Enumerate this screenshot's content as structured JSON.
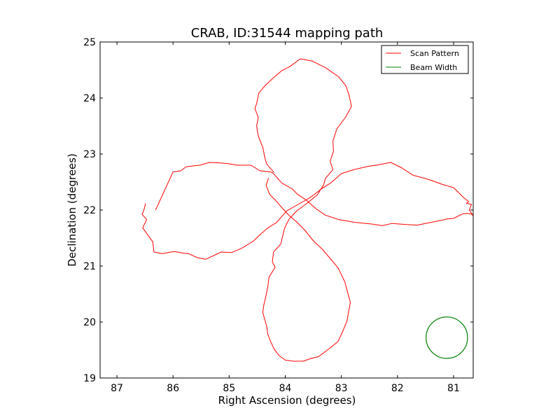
{
  "chart_data": {
    "type": "line",
    "title": "CRAB, ID:31544 mapping path",
    "xlabel": "Right Ascension (degrees)",
    "ylabel": "Declination (degrees)",
    "xlim": [
      87.3,
      80.65
    ],
    "ylim": [
      19,
      25
    ],
    "x_inverted": true,
    "xticks": [
      87,
      86,
      85,
      84,
      83,
      82,
      81
    ],
    "yticks": [
      19,
      20,
      21,
      22,
      23,
      24,
      25
    ],
    "xtick_labels": [
      "87",
      "86",
      "85",
      "84",
      "83",
      "82",
      "81"
    ],
    "ytick_labels": [
      "19",
      "20",
      "21",
      "22",
      "23",
      "24",
      "25"
    ],
    "grid": false,
    "legend_placement": "top-right",
    "series": [
      {
        "name": "Scan Pattern",
        "color": "#ff0000",
        "x": [
          86.31,
          86.0,
          85.86,
          85.77,
          85.62,
          85.52,
          85.35,
          85.16,
          85.03,
          84.86,
          84.61,
          84.45,
          84.26,
          84.22,
          84.06,
          83.88,
          83.78,
          83.63,
          83.46,
          83.29,
          83.05,
          82.76,
          82.46,
          82.27,
          82.1,
          81.84,
          81.65,
          81.4,
          81.3,
          81.11,
          81.0,
          80.84,
          80.76,
          80.69,
          80.65,
          80.72,
          80.68,
          80.77,
          80.73,
          80.82,
          81.0,
          81.18,
          81.4,
          81.53,
          81.72,
          81.92,
          82.12,
          82.38,
          82.52,
          82.78,
          83.0,
          83.18,
          83.35,
          83.56,
          83.77,
          83.98,
          84.15,
          84.31,
          84.46,
          84.56,
          84.77,
          84.96,
          85.14,
          85.42,
          85.57,
          85.72,
          85.82,
          85.98,
          86.19,
          86.34,
          86.36,
          86.54,
          86.47,
          86.55,
          86.51,
          86.49
        ],
        "y": [
          22.0,
          22.68,
          22.7,
          22.77,
          22.79,
          22.8,
          22.85,
          22.84,
          22.83,
          22.8,
          22.8,
          22.7,
          22.68,
          22.66,
          22.48,
          22.38,
          22.28,
          22.18,
          22.03,
          21.91,
          21.83,
          21.78,
          21.75,
          21.72,
          21.76,
          21.74,
          21.73,
          21.78,
          21.8,
          21.84,
          21.85,
          21.93,
          21.94,
          21.93,
          21.9,
          22.0,
          22.1,
          22.12,
          22.15,
          22.22,
          22.4,
          22.45,
          22.53,
          22.57,
          22.62,
          22.75,
          22.85,
          22.8,
          22.78,
          22.72,
          22.65,
          22.49,
          22.38,
          22.22,
          22.1,
          21.98,
          21.78,
          21.68,
          21.55,
          21.45,
          21.32,
          21.24,
          21.25,
          21.12,
          21.15,
          21.22,
          21.23,
          21.26,
          21.22,
          21.25,
          21.43,
          21.68,
          21.83,
          21.92,
          22.03,
          22.12
        ]
      },
      {
        "name": "Scan Pattern",
        "color": "#ff0000",
        "x": [
          84.2,
          84.33,
          84.36,
          84.4,
          84.48,
          84.51,
          84.48,
          84.54,
          84.51,
          84.47,
          84.36,
          84.2,
          84.06,
          83.92,
          83.73,
          83.52,
          83.28,
          83.05,
          82.92,
          82.86,
          82.82,
          82.93,
          83.08,
          83.15,
          83.14,
          83.2,
          83.15,
          83.28,
          83.32,
          83.43,
          83.6,
          83.8,
          83.93,
          84.01,
          84.05,
          84.08,
          84.21,
          84.23,
          84.18,
          84.29,
          84.31,
          84.34,
          84.38,
          84.4,
          84.36
        ],
        "y": [
          22.67,
          22.82,
          22.92,
          23.12,
          23.32,
          23.5,
          23.65,
          23.81,
          23.9,
          24.09,
          24.22,
          24.37,
          24.49,
          24.56,
          24.7,
          24.66,
          24.54,
          24.38,
          24.22,
          24.04,
          23.85,
          23.65,
          23.45,
          23.23,
          23.05,
          22.87,
          22.72,
          22.57,
          22.44,
          22.27,
          22.13,
          21.98,
          21.84,
          21.68,
          21.52,
          21.39,
          21.25,
          21.07,
          20.98,
          20.8,
          20.63,
          20.48,
          20.31,
          20.17,
          20.03
        ]
      },
      {
        "name": "Scan Pattern",
        "color": "#ff0000",
        "x": [
          84.36,
          84.33,
          84.31,
          84.26,
          84.2,
          84.11,
          84.0,
          83.86,
          83.68,
          83.54,
          83.41,
          83.22,
          83.06,
          82.98,
          82.9,
          82.84,
          82.94,
          83.06,
          83.17,
          83.34,
          83.5,
          83.66,
          83.81,
          83.93,
          84.04,
          84.17,
          84.28,
          84.34,
          84.3
        ],
        "y": [
          20.03,
          19.92,
          19.78,
          19.65,
          19.52,
          19.4,
          19.32,
          19.3,
          19.3,
          19.35,
          19.38,
          19.52,
          19.65,
          19.82,
          20.02,
          20.35,
          20.72,
          20.97,
          21.1,
          21.3,
          21.45,
          21.65,
          21.8,
          21.9,
          22.02,
          22.17,
          22.28,
          22.44,
          22.57
        ]
      }
    ],
    "beam": {
      "name": "Beam Width",
      "color": "#008000",
      "center": [
        81.12,
        19.72
      ],
      "radius_deg": 0.37
    },
    "legend": [
      {
        "label": "Scan Pattern",
        "color": "#ff0000"
      },
      {
        "label": "Beam Width",
        "color": "#008000"
      }
    ]
  }
}
